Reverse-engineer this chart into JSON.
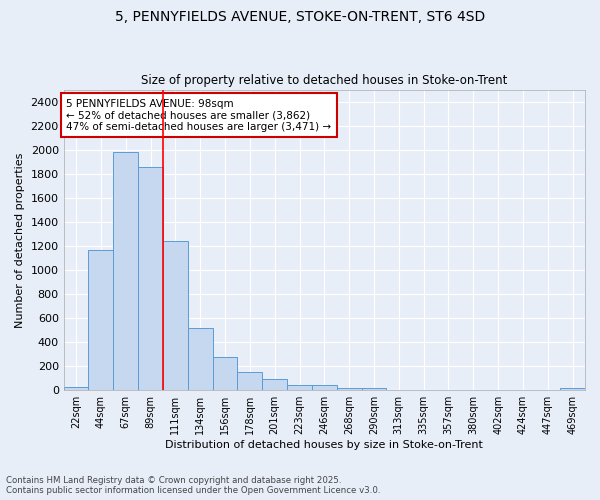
{
  "title_line1": "5, PENNYFIELDS AVENUE, STOKE-ON-TRENT, ST6 4SD",
  "title_line2": "Size of property relative to detached houses in Stoke-on-Trent",
  "xlabel": "Distribution of detached houses by size in Stoke-on-Trent",
  "ylabel": "Number of detached properties",
  "bar_labels": [
    "22sqm",
    "44sqm",
    "67sqm",
    "89sqm",
    "111sqm",
    "134sqm",
    "156sqm",
    "178sqm",
    "201sqm",
    "223sqm",
    "246sqm",
    "268sqm",
    "290sqm",
    "313sqm",
    "335sqm",
    "357sqm",
    "380sqm",
    "402sqm",
    "424sqm",
    "447sqm",
    "469sqm"
  ],
  "bar_values": [
    25,
    1170,
    1980,
    1860,
    1240,
    520,
    275,
    150,
    90,
    45,
    45,
    20,
    15,
    5,
    3,
    3,
    3,
    3,
    2,
    2,
    18
  ],
  "bar_color": "#c5d8f0",
  "bar_edge_color": "#5b9bd5",
  "red_line_x": 3.5,
  "annotation_text": "5 PENNYFIELDS AVENUE: 98sqm\n← 52% of detached houses are smaller (3,862)\n47% of semi-detached houses are larger (3,471) →",
  "annotation_box_color": "#ffffff",
  "annotation_box_edge_color": "#cc0000",
  "ylim": [
    0,
    2500
  ],
  "yticks": [
    0,
    200,
    400,
    600,
    800,
    1000,
    1200,
    1400,
    1600,
    1800,
    2000,
    2200,
    2400
  ],
  "background_color": "#e8eef8",
  "grid_color": "#ffffff",
  "footer_line1": "Contains HM Land Registry data © Crown copyright and database right 2025.",
  "footer_line2": "Contains public sector information licensed under the Open Government Licence v3.0."
}
